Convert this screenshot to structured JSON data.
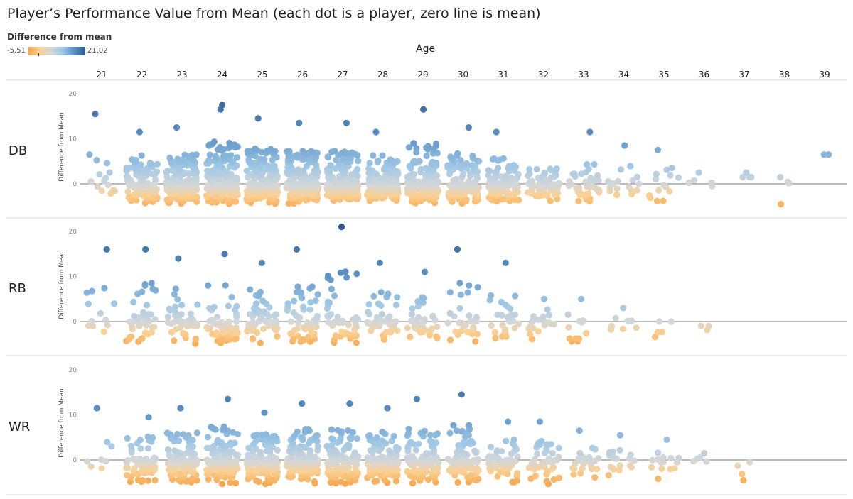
{
  "title": "Player’s Performance Value from Mean (each dot is a player, zero line is mean)",
  "legend": {
    "title": "Difference from mean",
    "min_label": "-5.51",
    "max_label": "21.02",
    "min": -5.51,
    "max": 21.02,
    "colors": [
      "#f6a54a",
      "#fbd092",
      "#d4d7d9",
      "#9fc7e5",
      "#5d92c6",
      "#2e5c8e"
    ]
  },
  "chart_data": {
    "type": "scatter",
    "title": "Player’s Performance Value from Mean (each dot is a player, zero line is mean)",
    "column_header": "Age",
    "ylabel": "Difference from Mean",
    "ages": [
      21,
      22,
      23,
      24,
      25,
      26,
      27,
      28,
      29,
      30,
      31,
      32,
      33,
      34,
      35,
      36,
      37,
      38,
      39
    ],
    "yticks": [
      0,
      10,
      20
    ],
    "ylim": [
      -5.51,
      21.02
    ],
    "zero_line": true,
    "panels": [
      {
        "position": "DB",
        "notable_points": [
          {
            "age": 21,
            "y": 15.5
          },
          {
            "age": 22,
            "y": 11.5
          },
          {
            "age": 23,
            "y": 12.5
          },
          {
            "age": 24,
            "y": 16.5
          },
          {
            "age": 24,
            "y": 17.5
          },
          {
            "age": 25,
            "y": 14.5
          },
          {
            "age": 26,
            "y": 13.5
          },
          {
            "age": 27,
            "y": 13.5
          },
          {
            "age": 28,
            "y": 11.5
          },
          {
            "age": 29,
            "y": 16.5
          },
          {
            "age": 30,
            "y": 12.5
          },
          {
            "age": 31,
            "y": 11.5
          },
          {
            "age": 33,
            "y": 11.5
          },
          {
            "age": 34,
            "y": 8.5
          },
          {
            "age": 35,
            "y": 7.5
          },
          {
            "age": 36,
            "y": 2.5
          },
          {
            "age": 37,
            "y": 2.5
          },
          {
            "age": 38,
            "y": 1.5
          },
          {
            "age": 38,
            "y": -4.5
          },
          {
            "age": 39,
            "y": 6.5
          }
        ],
        "age_summary": [
          {
            "age": 21,
            "count": 14,
            "max": 15.5,
            "min": -3.5
          },
          {
            "age": 22,
            "count": 110,
            "max": 11.5,
            "min": -4.5
          },
          {
            "age": 23,
            "count": 180,
            "max": 12.5,
            "min": -4.5
          },
          {
            "age": 24,
            "count": 190,
            "max": 17.5,
            "min": -4.5
          },
          {
            "age": 25,
            "count": 190,
            "max": 14.5,
            "min": -4.5
          },
          {
            "age": 26,
            "count": 180,
            "max": 13.5,
            "min": -4.5
          },
          {
            "age": 27,
            "count": 170,
            "max": 13.5,
            "min": -4.5
          },
          {
            "age": 28,
            "count": 160,
            "max": 11.5,
            "min": -4.5
          },
          {
            "age": 29,
            "count": 150,
            "max": 16.5,
            "min": -4.5
          },
          {
            "age": 30,
            "count": 120,
            "max": 12.5,
            "min": -4.5
          },
          {
            "age": 31,
            "count": 100,
            "max": 11.5,
            "min": -4.5
          },
          {
            "age": 32,
            "count": 75,
            "max": 6.5,
            "min": -4.5
          },
          {
            "age": 33,
            "count": 40,
            "max": 11.5,
            "min": -4.5
          },
          {
            "age": 34,
            "count": 18,
            "max": 8.5,
            "min": -4
          },
          {
            "age": 35,
            "count": 14,
            "max": 7.5,
            "min": -4.5
          },
          {
            "age": 36,
            "count": 4,
            "max": 2.5,
            "min": -1.5
          },
          {
            "age": 37,
            "count": 3,
            "max": 2.5,
            "min": 1.5
          },
          {
            "age": 38,
            "count": 2,
            "max": 1.5,
            "min": -4.5
          },
          {
            "age": 39,
            "count": 1,
            "max": 6.5,
            "min": 6.5
          }
        ]
      },
      {
        "position": "RB",
        "notable_points": [
          {
            "age": 21,
            "y": 16
          },
          {
            "age": 22,
            "y": 16
          },
          {
            "age": 23,
            "y": 14
          },
          {
            "age": 24,
            "y": 15
          },
          {
            "age": 25,
            "y": 13
          },
          {
            "age": 26,
            "y": 16
          },
          {
            "age": 27,
            "y": 21
          },
          {
            "age": 28,
            "y": 13
          },
          {
            "age": 29,
            "y": 11
          },
          {
            "age": 30,
            "y": 16
          },
          {
            "age": 31,
            "y": 13
          },
          {
            "age": 32,
            "y": 5
          },
          {
            "age": 33,
            "y": 5
          },
          {
            "age": 34,
            "y": 3
          },
          {
            "age": 35,
            "y": 0
          },
          {
            "age": 36,
            "y": -1
          }
        ],
        "age_summary": [
          {
            "age": 21,
            "count": 12,
            "max": 16,
            "min": -4
          },
          {
            "age": 22,
            "count": 40,
            "max": 16,
            "min": -5
          },
          {
            "age": 23,
            "count": 45,
            "max": 14,
            "min": -5
          },
          {
            "age": 24,
            "count": 55,
            "max": 15,
            "min": -5
          },
          {
            "age": 25,
            "count": 50,
            "max": 13,
            "min": -5
          },
          {
            "age": 26,
            "count": 50,
            "max": 16,
            "min": -5
          },
          {
            "age": 27,
            "count": 45,
            "max": 21,
            "min": -5
          },
          {
            "age": 28,
            "count": 40,
            "max": 13,
            "min": -5
          },
          {
            "age": 29,
            "count": 35,
            "max": 11,
            "min": -5
          },
          {
            "age": 30,
            "count": 30,
            "max": 16,
            "min": -5
          },
          {
            "age": 31,
            "count": 28,
            "max": 13,
            "min": -5
          },
          {
            "age": 32,
            "count": 20,
            "max": 5,
            "min": -5
          },
          {
            "age": 33,
            "count": 12,
            "max": 5,
            "min": -5
          },
          {
            "age": 34,
            "count": 7,
            "max": 3,
            "min": -4
          },
          {
            "age": 35,
            "count": 4,
            "max": 0,
            "min": -4
          },
          {
            "age": 36,
            "count": 2,
            "max": -1,
            "min": -4
          }
        ]
      },
      {
        "position": "WR",
        "notable_points": [
          {
            "age": 21,
            "y": 11.5
          },
          {
            "age": 22,
            "y": 9.5
          },
          {
            "age": 23,
            "y": 11.5
          },
          {
            "age": 24,
            "y": 13.5
          },
          {
            "age": 25,
            "y": 10.5
          },
          {
            "age": 26,
            "y": 12.5
          },
          {
            "age": 27,
            "y": 12.5
          },
          {
            "age": 28,
            "y": 11.5
          },
          {
            "age": 29,
            "y": 13.5
          },
          {
            "age": 30,
            "y": 14.5
          },
          {
            "age": 31,
            "y": 8.5
          },
          {
            "age": 32,
            "y": 8.5
          },
          {
            "age": 33,
            "y": 6.5
          },
          {
            "age": 34,
            "y": 5.5
          },
          {
            "age": 35,
            "y": 4.5
          },
          {
            "age": 36,
            "y": 1.5
          },
          {
            "age": 37,
            "y": -0.5
          },
          {
            "age": 37,
            "y": -4.5
          }
        ],
        "age_summary": [
          {
            "age": 21,
            "count": 7,
            "max": 11.5,
            "min": -3.5
          },
          {
            "age": 22,
            "count": 60,
            "max": 9.5,
            "min": -5.5
          },
          {
            "age": 23,
            "count": 100,
            "max": 11.5,
            "min": -5.5
          },
          {
            "age": 24,
            "count": 120,
            "max": 13.5,
            "min": -5.5
          },
          {
            "age": 25,
            "count": 130,
            "max": 10.5,
            "min": -5.5
          },
          {
            "age": 26,
            "count": 130,
            "max": 12.5,
            "min": -5.5
          },
          {
            "age": 27,
            "count": 120,
            "max": 12.5,
            "min": -5.5
          },
          {
            "age": 28,
            "count": 110,
            "max": 11.5,
            "min": -5.5
          },
          {
            "age": 29,
            "count": 100,
            "max": 13.5,
            "min": -5.5
          },
          {
            "age": 30,
            "count": 80,
            "max": 14.5,
            "min": -5.5
          },
          {
            "age": 31,
            "count": 55,
            "max": 8.5,
            "min": -5.5
          },
          {
            "age": 32,
            "count": 40,
            "max": 8.5,
            "min": -5.5
          },
          {
            "age": 33,
            "count": 25,
            "max": 6.5,
            "min": -5.5
          },
          {
            "age": 34,
            "count": 18,
            "max": 5.5,
            "min": -5.5
          },
          {
            "age": 35,
            "count": 14,
            "max": 4.5,
            "min": -5.5
          },
          {
            "age": 36,
            "count": 4,
            "max": 1.5,
            "min": -0.5
          },
          {
            "age": 37,
            "count": 2,
            "max": -0.5,
            "min": -4.5
          }
        ]
      }
    ]
  }
}
